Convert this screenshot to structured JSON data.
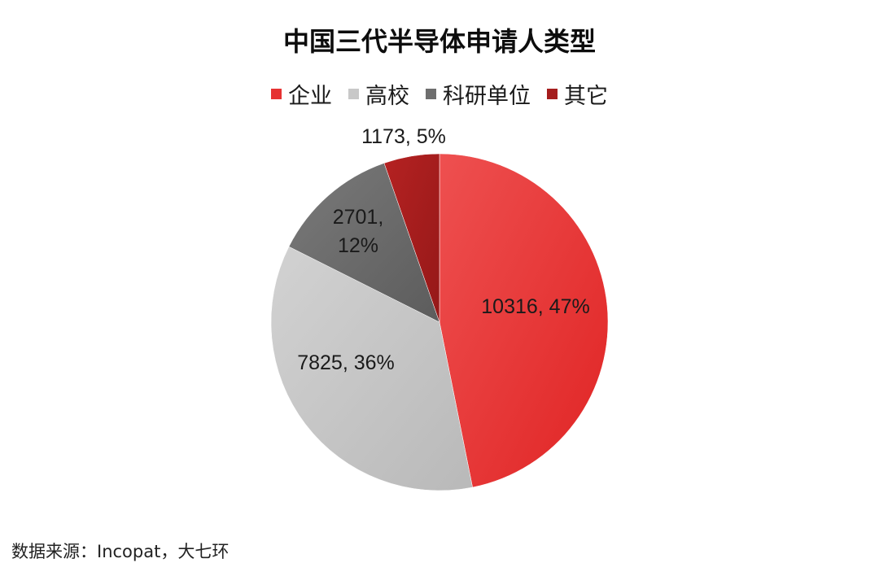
{
  "chart_data": {
    "type": "pie",
    "title": "中国三代半导体申请人类型",
    "legend_position": "top",
    "slices": [
      {
        "name": "企业",
        "value": 10316,
        "percent": "47%",
        "label": "10316, 47%",
        "color": "#e63232"
      },
      {
        "name": "高校",
        "value": 7825,
        "percent": "36%",
        "label": "7825, 36%",
        "color": "#c8c8c8"
      },
      {
        "name": "科研单位",
        "value": 2701,
        "percent": "12%",
        "label_lines": [
          "2701,",
          "12%"
        ],
        "color": "#6e6e6e"
      },
      {
        "name": "其它",
        "value": 1173,
        "percent": "5%",
        "label": "1173, 5%",
        "color": "#a51d1d"
      }
    ]
  },
  "source_text": "数据来源：Incopat，大七环"
}
